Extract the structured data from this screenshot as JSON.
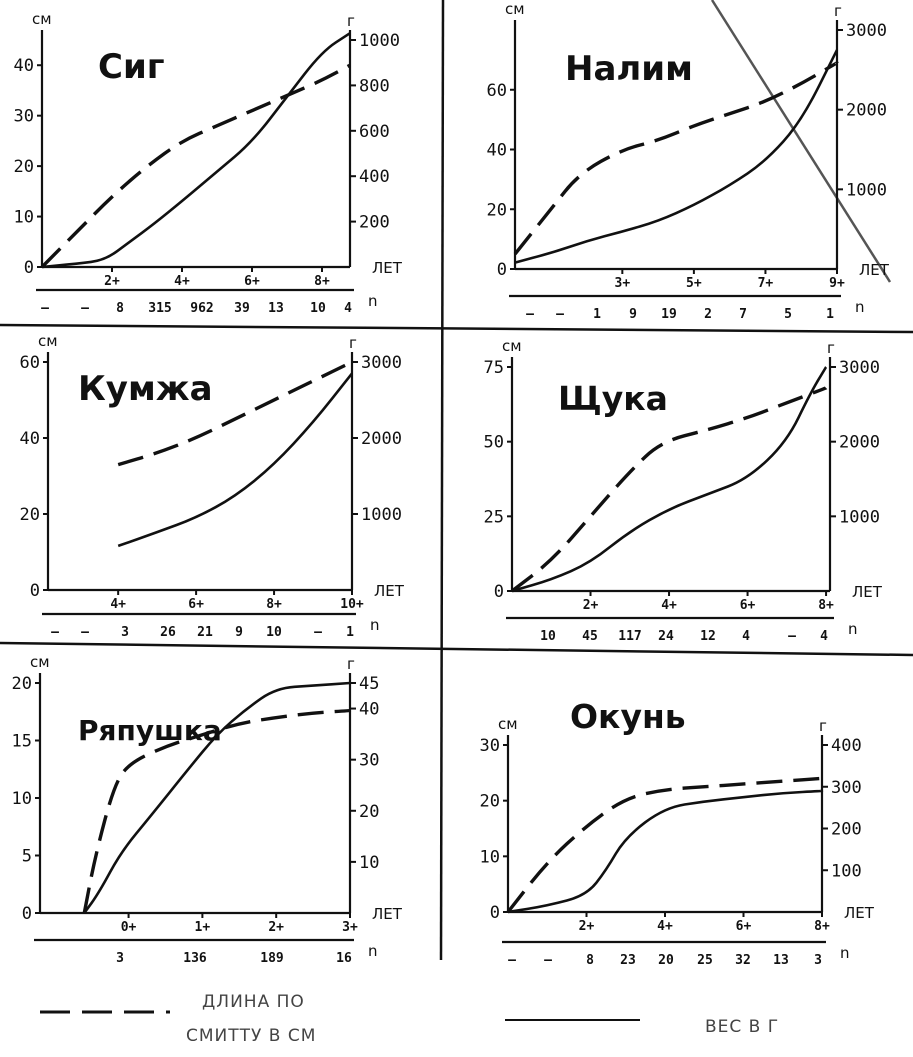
{
  "chart_data": [
    {
      "type": "line",
      "title": "Сиг",
      "left_unit": "см",
      "right_unit": "г",
      "ages_unit": "ЛЕТ",
      "n_label": "n",
      "x_ticks": [
        "2+",
        "4+",
        "6+",
        "8+"
      ],
      "n_values": [
        "–",
        "–",
        "8",
        "315",
        "962",
        "39",
        "13",
        "10",
        "4"
      ],
      "ylim_left": [
        0,
        45
      ],
      "yticks_left": [
        "0",
        "10",
        "20",
        "30",
        "40"
      ],
      "ylim_right": [
        0,
        1000
      ],
      "yticks_right": [
        "200",
        "400",
        "600",
        "800",
        "1000"
      ],
      "series": [
        {
          "name": "длина по Смитту в см",
          "axis": "left",
          "x": [
            0,
            1,
            2,
            3,
            4,
            5,
            6,
            7,
            8,
            8.8
          ],
          "y": [
            0,
            7,
            14,
            20,
            25,
            28,
            31,
            34,
            37,
            40
          ]
        },
        {
          "name": "вес в г",
          "axis": "right",
          "x": [
            0,
            1,
            1.8,
            2.5,
            3.2,
            4,
            5,
            6,
            7,
            8,
            8.8
          ],
          "y": [
            0,
            15,
            30,
            110,
            190,
            290,
            420,
            550,
            750,
            950,
            1030
          ]
        }
      ]
    },
    {
      "type": "line",
      "title": "Налим",
      "left_unit": "см",
      "right_unit": "г",
      "ages_unit": "ЛЕТ",
      "n_label": "n",
      "x_ticks": [
        "3+",
        "5+",
        "7+",
        "9+"
      ],
      "n_values": [
        "–",
        "–",
        "1",
        "9",
        "19",
        "2",
        "7",
        "5",
        "1"
      ],
      "ylim_left": [
        0,
        80
      ],
      "yticks_left": [
        "0",
        "20",
        "40",
        "60"
      ],
      "ylim_right": [
        0,
        3000
      ],
      "yticks_right": [
        "1000",
        "2000",
        "3000"
      ],
      "series": [
        {
          "name": "длина по Смитту в см",
          "axis": "left",
          "x": [
            0,
            1,
            1.8,
            3,
            4,
            5,
            6,
            7,
            8,
            9
          ],
          "y": [
            5,
            20,
            32,
            40,
            43,
            48,
            52,
            56,
            62,
            69
          ]
        },
        {
          "name": "вес в г",
          "axis": "right",
          "x": [
            0,
            1,
            2,
            3,
            4,
            5,
            6,
            7,
            8,
            9
          ],
          "y": [
            80,
            200,
            350,
            470,
            600,
            800,
            1050,
            1350,
            1850,
            2750
          ]
        }
      ]
    },
    {
      "type": "line",
      "title": "Кумжа",
      "left_unit": "см",
      "right_unit": "г",
      "ages_unit": "ЛЕТ",
      "n_label": "n",
      "x_ticks": [
        "4+",
        "6+",
        "8+",
        "10+"
      ],
      "n_values": [
        "–",
        "–",
        "3",
        "26",
        "21",
        "9",
        "10",
        "–",
        "1"
      ],
      "ylim_left": [
        0,
        60
      ],
      "yticks_left": [
        "0",
        "20",
        "40",
        "60"
      ],
      "ylim_right": [
        0,
        3000
      ],
      "yticks_right": [
        "1000",
        "2000",
        "3000"
      ],
      "series": [
        {
          "name": "длина по Смитту в см",
          "axis": "left",
          "x": [
            4,
            5,
            6,
            7,
            8,
            9,
            10
          ],
          "y": [
            33,
            36,
            40,
            45,
            50,
            55,
            60
          ]
        },
        {
          "name": "вес в г",
          "axis": "right",
          "x": [
            4,
            5,
            6,
            7,
            8,
            9,
            10
          ],
          "y": [
            580,
            760,
            950,
            1230,
            1650,
            2200,
            2850
          ]
        }
      ]
    },
    {
      "type": "line",
      "title": "Щука",
      "left_unit": "см",
      "right_unit": "г",
      "ages_unit": "ЛЕТ",
      "n_label": "n",
      "x_ticks": [
        "2+",
        "4+",
        "6+",
        "8+"
      ],
      "n_values": [
        "10",
        "45",
        "117",
        "24",
        "12",
        "4",
        "–",
        "4"
      ],
      "ylim_left": [
        0,
        75
      ],
      "yticks_left": [
        "0",
        "25",
        "50",
        "75"
      ],
      "ylim_right": [
        0,
        3000
      ],
      "yticks_right": [
        "1000",
        "2000",
        "3000"
      ],
      "series": [
        {
          "name": "длина по Смитту в см",
          "axis": "left",
          "x": [
            0,
            1,
            2,
            3,
            3.8,
            5,
            6,
            7,
            8
          ],
          "y": [
            0,
            10,
            25,
            40,
            50,
            54,
            58,
            63,
            68
          ]
        },
        {
          "name": "вес в г",
          "axis": "right",
          "x": [
            0,
            1,
            2,
            3,
            4,
            5,
            6,
            7,
            7.6,
            8
          ],
          "y": [
            0,
            150,
            380,
            800,
            1100,
            1300,
            1500,
            2000,
            2650,
            3000
          ]
        }
      ]
    },
    {
      "type": "line",
      "title": "Ряпушка",
      "left_unit": "см",
      "right_unit": "г",
      "ages_unit": "ЛЕТ",
      "n_label": "n",
      "x_ticks": [
        "0+",
        "1+",
        "2+",
        "3+"
      ],
      "n_values": [
        "3",
        "136",
        "189",
        "16"
      ],
      "ylim_left": [
        0,
        20
      ],
      "yticks_left": [
        "0",
        "5",
        "10",
        "15",
        "20"
      ],
      "ylim_right": [
        0,
        45
      ],
      "yticks_right": [
        "10",
        "20",
        "30",
        "40",
        "45"
      ],
      "series": [
        {
          "name": "длина по Смитту в см",
          "axis": "left",
          "x": [
            -0.6,
            -0.45,
            -0.2,
            0,
            0.5,
            1,
            1.5,
            2,
            2.5,
            3
          ],
          "y": [
            0,
            5,
            11,
            13,
            14.5,
            15.5,
            16.5,
            17,
            17.4,
            17.6
          ]
        },
        {
          "name": "вес в г",
          "axis": "right",
          "x": [
            -0.6,
            -0.4,
            -0.1,
            0.3,
            0.8,
            1.2,
            1.6,
            2,
            2.5,
            3
          ],
          "y": [
            0,
            4,
            12,
            19,
            28,
            35,
            40,
            44,
            44.5,
            45
          ]
        }
      ]
    },
    {
      "type": "line",
      "title": "Окунь",
      "left_unit": "см",
      "right_unit": "г",
      "ages_unit": "ЛЕТ",
      "n_label": "n",
      "x_ticks": [
        "2+",
        "4+",
        "6+",
        "8+"
      ],
      "n_values": [
        "–",
        "–",
        "8",
        "23",
        "20",
        "25",
        "32",
        "13",
        "3"
      ],
      "ylim_left": [
        0,
        30
      ],
      "yticks_left": [
        "0",
        "10",
        "20",
        "30"
      ],
      "ylim_right": [
        0,
        400
      ],
      "yticks_right": [
        "100",
        "200",
        "300",
        "400"
      ],
      "series": [
        {
          "name": "длина по Смитту в см",
          "axis": "left",
          "x": [
            0,
            1,
            2,
            3,
            4,
            5,
            6,
            7,
            8
          ],
          "y": [
            0,
            9,
            15.5,
            20.5,
            22,
            22.5,
            23,
            23.5,
            24
          ]
        },
        {
          "name": "вес в г",
          "axis": "right",
          "x": [
            0,
            1,
            2,
            2.5,
            3,
            4,
            5,
            6,
            7,
            8
          ],
          "y": [
            0,
            15,
            40,
            100,
            180,
            250,
            265,
            275,
            285,
            290
          ]
        }
      ]
    }
  ],
  "legend": {
    "dashed_label_1": "ДЛИНА ПО",
    "dashed_label_2": "СМИТТУ В СМ",
    "solid_label": "ВЕС В Г"
  }
}
